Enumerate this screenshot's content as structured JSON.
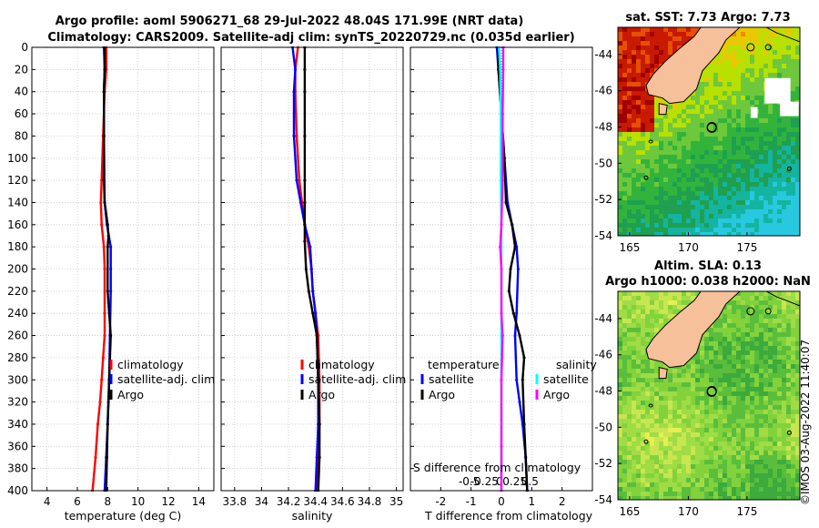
{
  "title": {
    "line1": "Argo profile: aoml 5906271_68 29-Jul-2022 48.04S 171.99E (NRT data)",
    "line2": "Climatology: CARS2009. Satellite-adj clim: synTS_20220729.nc (0.035d earlier)"
  },
  "credit": "©IMOS 03-Aug-2022 11:40:07",
  "chart_data": [
    {
      "type": "line",
      "name": "temperature-profile",
      "xlabel": "temperature (deg C)",
      "ylabel": "",
      "xlim": [
        3,
        15
      ],
      "ylim": [
        400,
        0
      ],
      "xticks": [
        4,
        6,
        8,
        10,
        12,
        14
      ],
      "yticks": [
        0,
        20,
        40,
        60,
        80,
        100,
        120,
        140,
        160,
        180,
        200,
        220,
        240,
        260,
        280,
        300,
        320,
        340,
        360,
        380,
        400
      ],
      "grid": true,
      "legend": [
        "climatology",
        "satellite-adj. clim",
        "Argo"
      ],
      "series": [
        {
          "name": "climatology",
          "color": "#ff0000",
          "x": [
            7.9,
            7.9,
            7.8,
            7.7,
            7.6,
            7.55,
            7.6,
            7.75,
            7.8,
            7.8,
            7.8,
            7.7,
            7.6,
            7.5,
            7.35,
            7.2,
            7.0
          ],
          "depth": [
            0,
            20,
            40,
            80,
            120,
            140,
            160,
            180,
            200,
            240,
            260,
            280,
            300,
            320,
            340,
            370,
            400
          ]
        },
        {
          "name": "satellite-adj. clim",
          "color": "#0000ff",
          "x": [
            7.75,
            7.8,
            7.75,
            7.75,
            7.8,
            7.95,
            8.2,
            8.2,
            8.2,
            8.15,
            8.1,
            8.05,
            8.0,
            7.9,
            7.8
          ],
          "depth": [
            0,
            20,
            40,
            80,
            140,
            160,
            180,
            200,
            220,
            260,
            300,
            320,
            340,
            370,
            400
          ]
        },
        {
          "name": "Argo",
          "color": "#000000",
          "x": [
            7.8,
            7.8,
            7.75,
            7.75,
            7.75,
            7.8,
            8.0,
            8.05,
            8.0,
            8.0,
            8.1,
            8.2,
            8.1,
            8.0,
            7.95,
            7.9
          ],
          "depth": [
            0,
            20,
            40,
            80,
            120,
            140,
            160,
            170,
            180,
            220,
            240,
            260,
            300,
            340,
            370,
            400
          ]
        }
      ]
    },
    {
      "type": "line",
      "name": "salinity-profile",
      "xlabel": "salinity",
      "ylabel": "",
      "xlim": [
        33.7,
        35.05
      ],
      "ylim": [
        400,
        0
      ],
      "xticks": [
        33.8,
        34,
        34.2,
        34.4,
        34.6,
        34.8,
        35
      ],
      "xtick_labels": [
        "33.8",
        "34",
        "34.2",
        "34.4",
        "34.6",
        "34.8",
        "35"
      ],
      "grid": true,
      "legend": [
        "climatology",
        "satellite-adj. clim",
        "Argo"
      ],
      "series": [
        {
          "name": "climatology",
          "color": "#ff0000",
          "x": [
            34.27,
            34.25,
            34.25,
            34.26,
            34.28,
            34.3,
            34.32,
            34.35,
            34.37,
            34.38,
            34.4,
            34.42,
            34.43,
            34.43,
            34.42,
            34.41
          ],
          "depth": [
            0,
            20,
            40,
            80,
            120,
            140,
            160,
            180,
            200,
            220,
            240,
            260,
            300,
            340,
            370,
            400
          ]
        },
        {
          "name": "satellite-adj. clim",
          "color": "#0000ff",
          "x": [
            34.23,
            34.25,
            34.24,
            34.24,
            34.26,
            34.29,
            34.32,
            34.36,
            34.37,
            34.38,
            34.4,
            34.41,
            34.42,
            34.42,
            34.41,
            34.4
          ],
          "depth": [
            0,
            20,
            40,
            80,
            120,
            140,
            160,
            180,
            200,
            220,
            240,
            260,
            300,
            340,
            370,
            400
          ]
        },
        {
          "name": "Argo",
          "color": "#000000",
          "x": [
            34.32,
            34.32,
            34.32,
            34.32,
            34.32,
            34.32,
            34.32,
            34.32,
            34.33,
            34.35,
            34.38,
            34.41,
            34.42,
            34.43,
            34.43,
            34.42
          ],
          "depth": [
            0,
            20,
            40,
            80,
            120,
            140,
            160,
            175,
            200,
            220,
            240,
            260,
            300,
            340,
            370,
            400
          ]
        }
      ]
    },
    {
      "type": "line",
      "name": "difference-profile",
      "xlabel": "T difference from climatology",
      "top_axis_label": "S difference from climatology",
      "xlim": [
        -3,
        3
      ],
      "ylim": [
        400,
        0
      ],
      "xticks": [
        -2,
        -1,
        0,
        1,
        2
      ],
      "top_ticks": [
        -0.5,
        -0.25,
        0,
        0.25,
        0.5
      ],
      "top_tick_labels": [
        "-0.5",
        "-0.25",
        "0",
        "0.25",
        "0.5"
      ],
      "grid": true,
      "legend_temperature_title": "temperature",
      "legend_salinity_title": "salinity",
      "legend": [
        "satellite",
        "Argo",
        "satellite",
        "Argo"
      ],
      "series": [
        {
          "name": "temperature satellite",
          "color": "#0000ff",
          "x": [
            -0.15,
            -0.1,
            0.0,
            0.1,
            0.2,
            0.35,
            0.5,
            0.55,
            0.5,
            0.45,
            0.5,
            0.6,
            0.7,
            0.8,
            0.85
          ],
          "depth": [
            0,
            20,
            60,
            100,
            140,
            160,
            180,
            200,
            240,
            260,
            300,
            320,
            340,
            370,
            400
          ]
        },
        {
          "name": "temperature Argo",
          "color": "#000000",
          "x": [
            -0.1,
            -0.1,
            0.0,
            0.1,
            0.15,
            0.35,
            0.45,
            0.3,
            0.25,
            0.4,
            0.6,
            0.75,
            0.7,
            0.75,
            0.8,
            0.85
          ],
          "depth": [
            0,
            20,
            60,
            100,
            140,
            160,
            180,
            200,
            220,
            240,
            260,
            280,
            300,
            340,
            370,
            400
          ]
        },
        {
          "name": "salinity satellite",
          "color": "#00ffff",
          "x": [
            -0.04,
            -0.02,
            -0.01,
            -0.01,
            0.0,
            0.0,
            0.0,
            0.0,
            0.0,
            0.0
          ],
          "depth": [
            0,
            20,
            60,
            120,
            160,
            200,
            260,
            300,
            360,
            400
          ],
          "axis": "top"
        },
        {
          "name": "salinity Argo",
          "color": "#ff00ff",
          "x": [
            0.03,
            0.03,
            0.02,
            0.02,
            0.0,
            -0.02,
            0.0,
            0.0,
            0.02,
            0.0,
            0.0,
            0.0
          ],
          "depth": [
            0,
            20,
            60,
            120,
            160,
            180,
            200,
            240,
            260,
            300,
            360,
            400
          ],
          "axis": "top"
        }
      ]
    },
    {
      "type": "heatmap",
      "name": "sst-map",
      "title": "sat. SST: 7.73 Argo: 7.73",
      "xlim": [
        164,
        179.5
      ],
      "ylim": [
        -54,
        -42.5
      ],
      "xticks": [
        165,
        170,
        175
      ],
      "yticks": [
        -44,
        -46,
        -48,
        -50,
        -52,
        -54
      ],
      "marker": {
        "lon": 171.99,
        "lat": -48.04
      }
    },
    {
      "type": "heatmap",
      "name": "sla-map",
      "title_line1": "Altim. SLA: 0.13",
      "title_line2": "Argo h1000: 0.038 h2000: NaN",
      "xlim": [
        164,
        179.5
      ],
      "ylim": [
        -54,
        -42.5
      ],
      "xticks": [
        165,
        170,
        175
      ],
      "yticks": [
        -44,
        -46,
        -48,
        -50,
        -52,
        -54
      ],
      "marker": {
        "lon": 171.99,
        "lat": -48.04
      }
    }
  ]
}
